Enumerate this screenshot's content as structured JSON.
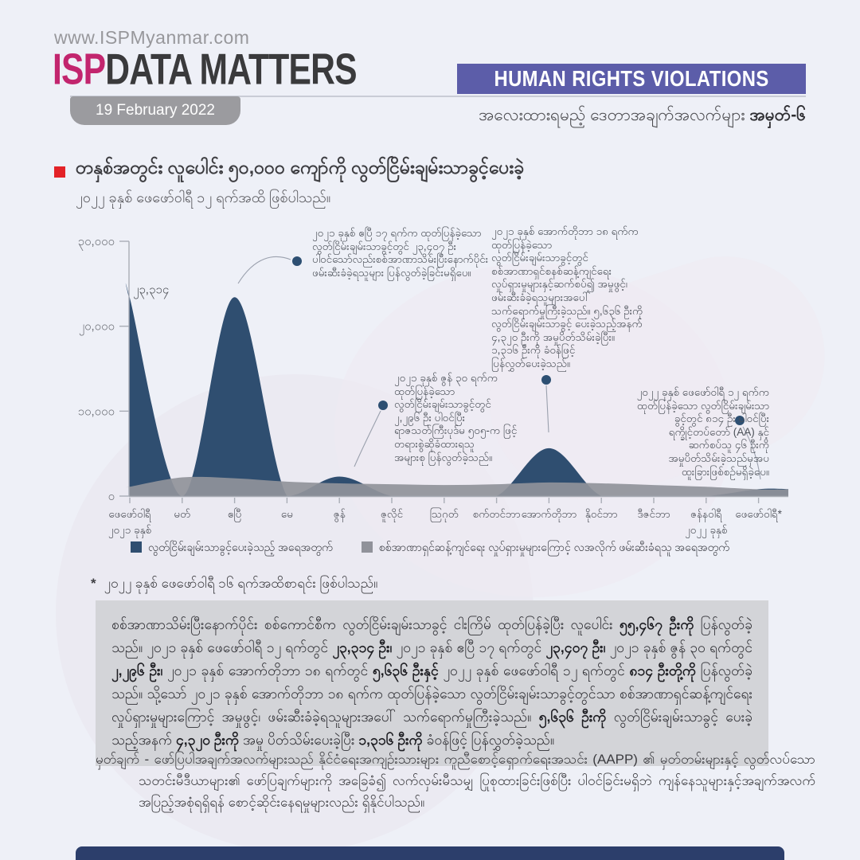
{
  "header": {
    "url": "www.ISPMyanmar.com",
    "brand_isp": "ISP",
    "brand_rest": "DATA MATTERS",
    "date_badge": "19 February 2022",
    "category_badge": "HUMAN RIGHTS VIOLATIONS",
    "series_line": "အလေးထားရမည့် ဒေတာအချက်အလက်များ ",
    "series_line_bold": "အမှတ်-၆",
    "colors": {
      "brand_magenta": "#c2256e",
      "badge_purple": "#5c5da9",
      "date_gray": "#9b9b9f"
    }
  },
  "title_block": {
    "title": "တနှစ်အတွင်း လူပေါင်း ၅၀,၀၀၀ ကျော်ကို လွတ်ငြိမ်းချမ်းသာခွင့်ပေးခဲ့",
    "subtitle": "၂၀၂၂ ခုနှစ် ဖေဖော်ဝါရီ ၁၂ ရက်အထိ ဖြစ်ပါသည်။",
    "bullet_color": "#e32227"
  },
  "chart_data": {
    "type": "area",
    "x_categories": [
      {
        "label": "ဖေဖော်ဝါရီ",
        "sub": "၂၀၂၁ ခုနှစ်"
      },
      {
        "label": "မတ်"
      },
      {
        "label": "ဧပြီ"
      },
      {
        "label": "မေ"
      },
      {
        "label": "ဇွန်"
      },
      {
        "label": "ဇူလိုင်"
      },
      {
        "label": "သြဂုတ်"
      },
      {
        "label": "စက်တင်ဘာ"
      },
      {
        "label": "အောက်တိုဘာ"
      },
      {
        "label": "နိုဝင်ဘာ"
      },
      {
        "label": "ဒီဇင်ဘာ"
      },
      {
        "label": "ဇန်နဝါရီ",
        "sub": "၂၀၂၂ ခုနှစ်"
      },
      {
        "label": "ဖေဖော်ဝါရီ*"
      }
    ],
    "series": [
      {
        "name": "လွတ်ငြိမ်းချမ်းသာခွင့်ပေးခဲ့သည့် အရေအတွက်",
        "color": "#2f4e70",
        "values": [
          23314,
          0,
          23407,
          0,
          2296,
          0,
          0,
          0,
          5636,
          0,
          0,
          0,
          814
        ]
      },
      {
        "name": "စစ်အာဏာရှင်ဆန့်ကျင်ရေး လှုပ်ရှားမှုများကြောင့် လအလိုက် ဖမ်းဆီးခံရသူ အရေအတွက်",
        "color": "#90929a",
        "values_estimated": true,
        "values": [
          1100,
          2200,
          2100,
          1700,
          1500,
          1400,
          1300,
          1400,
          1600,
          1500,
          1300,
          1100,
          800
        ]
      }
    ],
    "ylim": [
      0,
      30000
    ],
    "yticks": [
      {
        "value": 30000,
        "label": "၃၀,၀၀၀"
      },
      {
        "value": 20000,
        "label": "၂၀,၀၀၀"
      },
      {
        "value": 10000,
        "label": "၁၀,၀၀၀"
      },
      {
        "value": 0,
        "label": "၀"
      }
    ],
    "peak_label": {
      "text": "၂၃,၃၁၄",
      "x_index": 0,
      "value": 23314
    },
    "grid": false,
    "legend_position": "bottom"
  },
  "annotations": [
    {
      "lines": [
        "၂၀၂၁ ခုနှစ် ဧပြီ ၁၇ ရက်က ထုတ်ပြန်ခဲ့သော",
        "လွတ်ငြိမ်းချမ်းသာခွင့်တွင် ၂၃,၄၀၇ ဦး",
        "ပါဝင်သော်လည်းစစ်အာဏာသိမ်းပြီးနောက်ပိုင်း",
        "ဖမ်းဆီးခံခဲ့ရသူများ ပြန်လွတ်ခဲ့ခြင်းမရှိပေ။"
      ]
    },
    {
      "lines": [
        "၂၀၂၁ ခုနှစ် အောက်တိုဘာ ၁၈ ရက်က",
        "ထုတ်ပြန်ခဲ့သော",
        "လွတ်ငြိမ်းချမ်းသာခွင့်တွင်",
        "စစ်အာဏာရှင်စနစ်ဆန့်ကျင်ရေး",
        "လှုပ်ရှားမှုများနှင့်ဆက်စပ်၍ အမှုဖွင့်၊",
        "ဖမ်းဆီးခံခဲ့ရသူများအပေါ်",
        "သက်ရောက်မှုကြီးခဲ့သည်။ ၅,၆၃၆ ဦးကို",
        "လွတ်ငြိမ်းချမ်းသာခွင့် ပေးခဲ့သည့်အနက်",
        "၄,၃၂၀ ဦးကို အမှုပိတ်သိမ်းခဲ့ပြီး။",
        "၁,၃၁၆ ဦးကို ခံဝန်ဖြင့်",
        "ပြန်လွှတ်ပေးခဲ့သည်။"
      ]
    },
    {
      "lines": [
        "၂၀၂၁ ခုနှစ် ဇွန် ၃၀ ရက်က",
        "ထုတ်ပြန်ခဲ့သော",
        "လွတ်ငြိမ်းချမ်းသာခွင့်တွင်",
        "၂,၂၉၆ ဦး ပါဝင်ပြီး",
        "ရာဇသတ်ကြီးပုဒ်မ ၅၀၅-က ဖြင့်",
        "တရားစွဲဆိုခံထားရသူ",
        "အများစု ပြန်လွတ်ခဲ့သည်။"
      ]
    },
    {
      "lines": [
        "၂၀၂၂ ခုနှစ် ဖေဖော်ဝါရီ ၁၂ ရက်က",
        "ထုတ်ပြန်ခဲ့သော လွတ်ငြိမ်းချမ်းသာ",
        "ခွင့်တွင် ၈၁၄ ဦး ပါဝင်ပြီး",
        "ရက္ခိုင့်တပ်တော် (AA) နှင့်",
        "ဆက်စပ်သူ ၄၆ ဦးကို",
        "အမှုပိတ်သိမ်းခဲ့သည်မှအပ",
        "ထူးခြားဖြစ်စဉ်မရှိခဲ့ပေ။"
      ]
    }
  ],
  "legend": [
    {
      "label": "လွတ်ငြိမ်းချမ်းသာခွင့်ပေးခဲ့သည့် အရေအတွက်",
      "color": "#2f4e70"
    },
    {
      "label": "စစ်အာဏာရှင်ဆန့်ကျင်ရေး လှုပ်ရှားမှုများကြောင့် လအလိုက် ဖမ်းဆီးခံရသူ အရေအတွက်",
      "color": "#90929a"
    }
  ],
  "footnote": {
    "star": "*",
    "text": "၂၀၂၂ ခုနှစ် ဖေဖော်ဝါရီ ၁၆ ရက်အထိစာရင်း ဖြစ်ပါသည်။"
  },
  "summary_box": {
    "segments": [
      {
        "b": false,
        "t": "စစ်အာဏာသိမ်းပြီးနောက်ပိုင်း စစ်ကောင်စီက လွတ်ငြိမ်းချမ်းသာခွင့် ငါးကြိမ် ထုတ်ပြန်ခဲ့ပြီး လူပေါင်း "
      },
      {
        "b": true,
        "t": "၅၅,၄၆၇ ဦးကို"
      },
      {
        "b": false,
        "t": " ပြန်လွတ်ခဲ့သည်။ ၂၀၂၁ ခုနှစ် ဖေဖော်ဝါရီ ၁၂ ရက်တွင် "
      },
      {
        "b": true,
        "t": "၂၃,၃၁၄ ဦး၊"
      },
      {
        "b": false,
        "t": " ၂၀၂၁ ခုနှစ် ဧပြီ ၁၇ ရက်တွင် "
      },
      {
        "b": true,
        "t": "၂၃,၄၀၇ ဦး၊"
      },
      {
        "b": false,
        "t": " ၂၀၂၁ ခုနှစ် ဇွန် ၃၀ ရက်တွင် "
      },
      {
        "b": true,
        "t": "၂,၂၉၆ ဦး၊"
      },
      {
        "b": false,
        "t": " ၂၀၂၁ ခုနှစ် အောက်တိုဘာ ၁၈ ရက်တွင် "
      },
      {
        "b": true,
        "t": "၅,၆၃၆ ဦးနှင့်"
      },
      {
        "b": false,
        "t": " ၂၀၂၂ ခုနှစ် ဖေဖော်ဝါရီ ၁၂ ရက်တွင် "
      },
      {
        "b": true,
        "t": "၈၁၄ ဦးတို့ကို"
      },
      {
        "b": false,
        "t": " ပြန်လွတ်ခဲ့သည်။ သို့သော် ၂၀၂၁ ခုနှစ် အောက်တိုဘာ ၁၈ ရက်က ထုတ်ပြန်ခဲ့သော လွတ်ငြိမ်းချမ်းသာခွင့်တွင်သာ စစ်အာဏာရှင်ဆန့်ကျင်ရေး လှုပ်ရှားမှုများကြောင့် အမှုဖွင့်၊ ဖမ်းဆီးခံခဲ့ရသူများအပေါ် သက်ရောက်မှုကြီးခဲ့သည်။ "
      },
      {
        "b": true,
        "t": "၅,၆၃၆ ဦးကို"
      },
      {
        "b": false,
        "t": " လွတ်ငြိမ်းချမ်းသာခွင့် ပေးခဲ့သည့်အနက် "
      },
      {
        "b": true,
        "t": "၄,၃၂၀ ဦးကို"
      },
      {
        "b": false,
        "t": " အမှု ပိတ်သိမ်းပေးခဲ့ပြီး "
      },
      {
        "b": true,
        "t": "၁,၃၁၆ ဦးကို"
      },
      {
        "b": false,
        "t": " ခံဝန်ဖြင့် ပြန်လွှတ်ခဲ့သည်။"
      }
    ]
  },
  "note": {
    "label": "မှတ်ချက် - ",
    "text": "ဖော်ပြပါအချက်အလက်များသည် နိုင်ငံရေးအကျဉ်းသားများ ကူညီစောင့်ရှောက်ရေးအသင်း (AAPP) ၏ မှတ်တမ်းများနှင့် လွတ်လပ်သော သတင်းမီဒီယာများ၏ ဖော်ပြချက်များကို အခြေခံ၍ လက်လှမ်းမီသမျှ ပြုစုထားခြင်းဖြစ်ပြီး ပါဝင်ခြင်းမရှိဘဲ ကျန်နေသူများနှင့်အချက်အလက် အပြည့်အစုံရရှိရန် စောင့်ဆိုင်းနေရမှုများလည်း ရှိနိုင်ပါသည်။"
  }
}
